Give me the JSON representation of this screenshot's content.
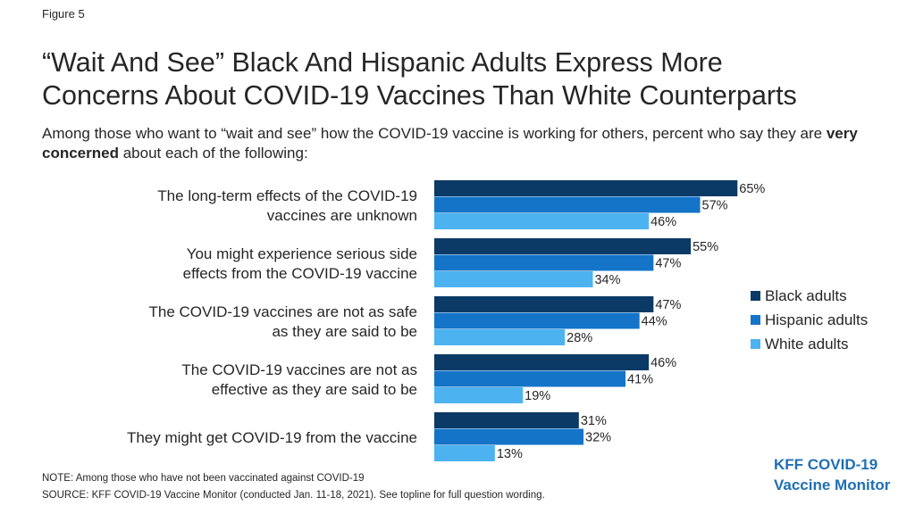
{
  "figure_label": "Figure 5",
  "title_line1": "“Wait And See” Black And Hispanic Adults Express More",
  "title_line2": "Concerns About COVID-19 Vaccines Than White Counterparts",
  "subtitle_pre": "Among those who want to “wait and see” how the COVID-19 vaccine is working for others, percent who say they are ",
  "subtitle_bold": "very concerned",
  "subtitle_post": " about each of the following:",
  "colors": {
    "black": "#0b3a66",
    "hispanic": "#1474c8",
    "white": "#4db3f0"
  },
  "chart_data": {
    "type": "bar",
    "orientation": "horizontal",
    "value_suffix": "%",
    "categories": [
      [
        "The long-term effects of the COVID-19",
        "vaccines are unknown"
      ],
      [
        "You might experience serious side",
        "effects from the COVID-19 vaccine"
      ],
      [
        "The COVID-19 vaccines are not as safe",
        "as they are said to be"
      ],
      [
        "The COVID-19 vaccines are not as",
        "effective as they are said to be"
      ],
      [
        "They might get COVID-19 from the vaccine"
      ]
    ],
    "series": [
      {
        "name": "Black adults",
        "color": "#0b3a66",
        "values": [
          65,
          55,
          47,
          46,
          31
        ]
      },
      {
        "name": "Hispanic adults",
        "color": "#1474c8",
        "values": [
          57,
          47,
          44,
          41,
          32
        ]
      },
      {
        "name": "White adults",
        "color": "#4db3f0",
        "values": [
          46,
          34,
          28,
          19,
          13
        ]
      }
    ],
    "legend_position": "right"
  },
  "note": "NOTE: Among those who have not been vaccinated against COVID-19",
  "source": "SOURCE: KFF COVID-19 Vaccine Monitor (conducted Jan. 11-18, 2021). See topline for full question wording.",
  "brand_line1": "KFF COVID-19",
  "brand_line2": "Vaccine Monitor"
}
